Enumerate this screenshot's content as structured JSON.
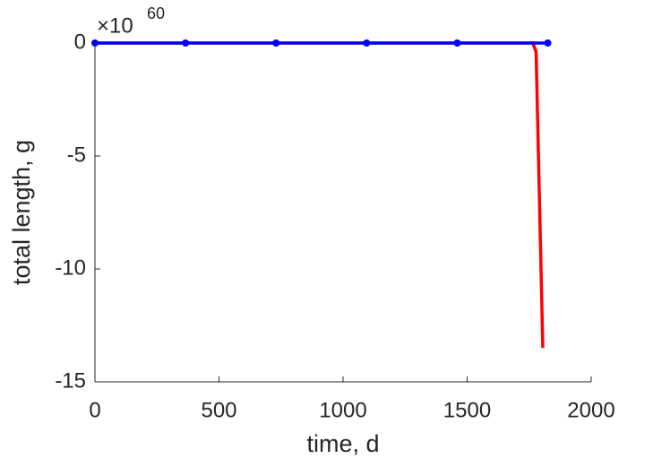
{
  "chart_data": {
    "type": "line",
    "xlabel": "time, d",
    "ylabel": "total length, g",
    "exponent_base": "×10",
    "exponent_power": "60",
    "series": [
      {
        "color": "#ff0000",
        "x": [
          0,
          1765,
          1778,
          1805
        ],
        "values": [
          0,
          0,
          -0.4,
          -13.5
        ],
        "markers": false
      },
      {
        "color": "#0000ff",
        "x": [
          0,
          365,
          730,
          1095,
          1460,
          1825
        ],
        "values": [
          0,
          0,
          0,
          0,
          0,
          0
        ],
        "markers": true
      }
    ],
    "xlim": [
      0,
      2000
    ],
    "xticks": [
      0,
      500,
      1000,
      1500,
      2000
    ],
    "ylim": [
      -15,
      0
    ],
    "yticks": [
      0,
      -5,
      -10,
      -15
    ]
  }
}
